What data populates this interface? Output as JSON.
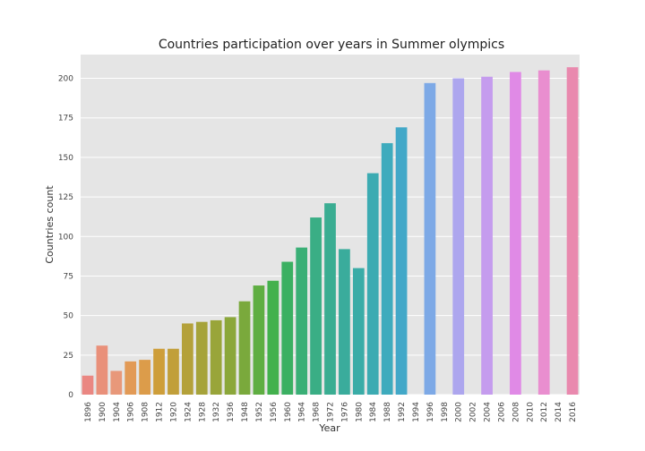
{
  "chart_data": {
    "type": "bar",
    "title": "Countries participation over years in Summer olympics",
    "xlabel": "Year",
    "ylabel": "Countries count",
    "ylim": [
      0,
      215
    ],
    "yticks": [
      0,
      25,
      50,
      75,
      100,
      125,
      150,
      175,
      200
    ],
    "grid": true,
    "categories": [
      "1896",
      "1900",
      "1904",
      "1906",
      "1908",
      "1912",
      "1920",
      "1924",
      "1928",
      "1932",
      "1936",
      "1948",
      "1952",
      "1956",
      "1960",
      "1964",
      "1968",
      "1972",
      "1976",
      "1980",
      "1984",
      "1988",
      "1992",
      "1994",
      "1996",
      "1998",
      "2000",
      "2002",
      "2004",
      "2006",
      "2008",
      "2010",
      "2012",
      "2014",
      "2016"
    ],
    "values": [
      12,
      31,
      15,
      21,
      22,
      29,
      29,
      45,
      46,
      47,
      49,
      59,
      69,
      72,
      84,
      93,
      112,
      121,
      92,
      80,
      140,
      159,
      169,
      0,
      197,
      0,
      200,
      0,
      201,
      0,
      204,
      0,
      205,
      0,
      207
    ],
    "colors": [
      "#ea8782",
      "#e9907a",
      "#e8987a",
      "#e29a56",
      "#dc9c4a",
      "#ce9e3a",
      "#c19f3a",
      "#b4a13a",
      "#a6a33a",
      "#99a53a",
      "#8ba73a",
      "#7aa93c",
      "#5fae42",
      "#43b14d",
      "#3bb062",
      "#3aaf76",
      "#3aae85",
      "#3aad92",
      "#3aac9c",
      "#3aaca7",
      "#3cabb2",
      "#3eabbd",
      "#42a8c8",
      "#52a3d8",
      "#7da9e6",
      "#9aa8ec",
      "#ada6ee",
      "#bca2ee",
      "#c59cee",
      "#d594ec",
      "#e08ae6",
      "#e78cdc",
      "#e98ecf",
      "#ea8cbd",
      "#e989ae"
    ]
  }
}
